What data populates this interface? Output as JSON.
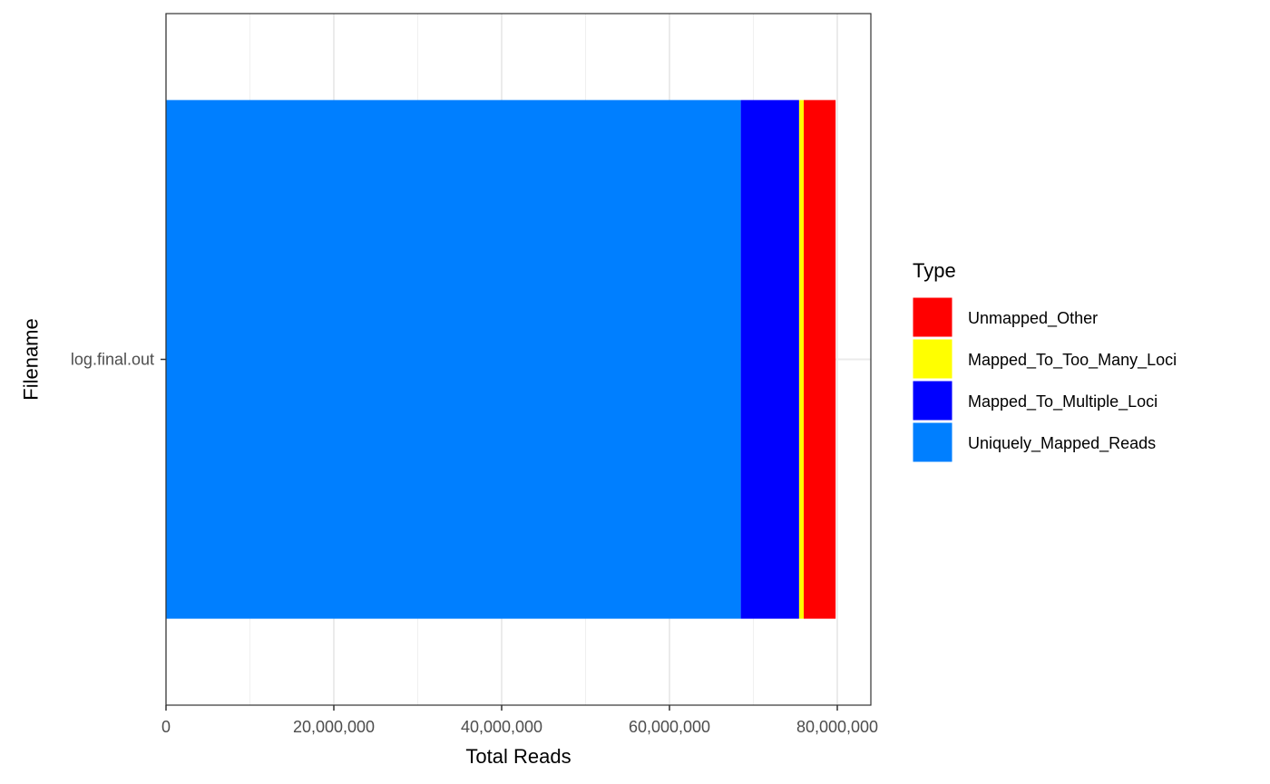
{
  "chart_data": {
    "type": "bar",
    "orientation": "horizontal",
    "stacked": true,
    "categories": [
      "log.final.out"
    ],
    "series": [
      {
        "name": "Uniquely_Mapped_Reads",
        "color": "#007FFF",
        "values": [
          68500000
        ]
      },
      {
        "name": "Mapped_To_Multiple_Loci",
        "color": "#0000FF",
        "values": [
          6950000
        ]
      },
      {
        "name": "Mapped_To_Too_Many_Loci",
        "color": "#FFFF00",
        "values": [
          550000
        ]
      },
      {
        "name": "Unmapped_Other",
        "color": "#FF0000",
        "values": [
          3800000
        ]
      }
    ],
    "xlabel": "Total Reads",
    "ylabel": "Filename",
    "xlim": [
      0,
      84000000
    ],
    "xticks": [
      0,
      20000000,
      40000000,
      60000000,
      80000000
    ],
    "xtick_labels": [
      "0",
      "20,000,000",
      "40,000,000",
      "60,000,000",
      "80,000,000"
    ],
    "grid": true,
    "legend": {
      "title": "Type",
      "position": "right",
      "order": [
        "Unmapped_Other",
        "Mapped_To_Too_Many_Loci",
        "Mapped_To_Multiple_Loci",
        "Uniquely_Mapped_Reads"
      ]
    }
  }
}
